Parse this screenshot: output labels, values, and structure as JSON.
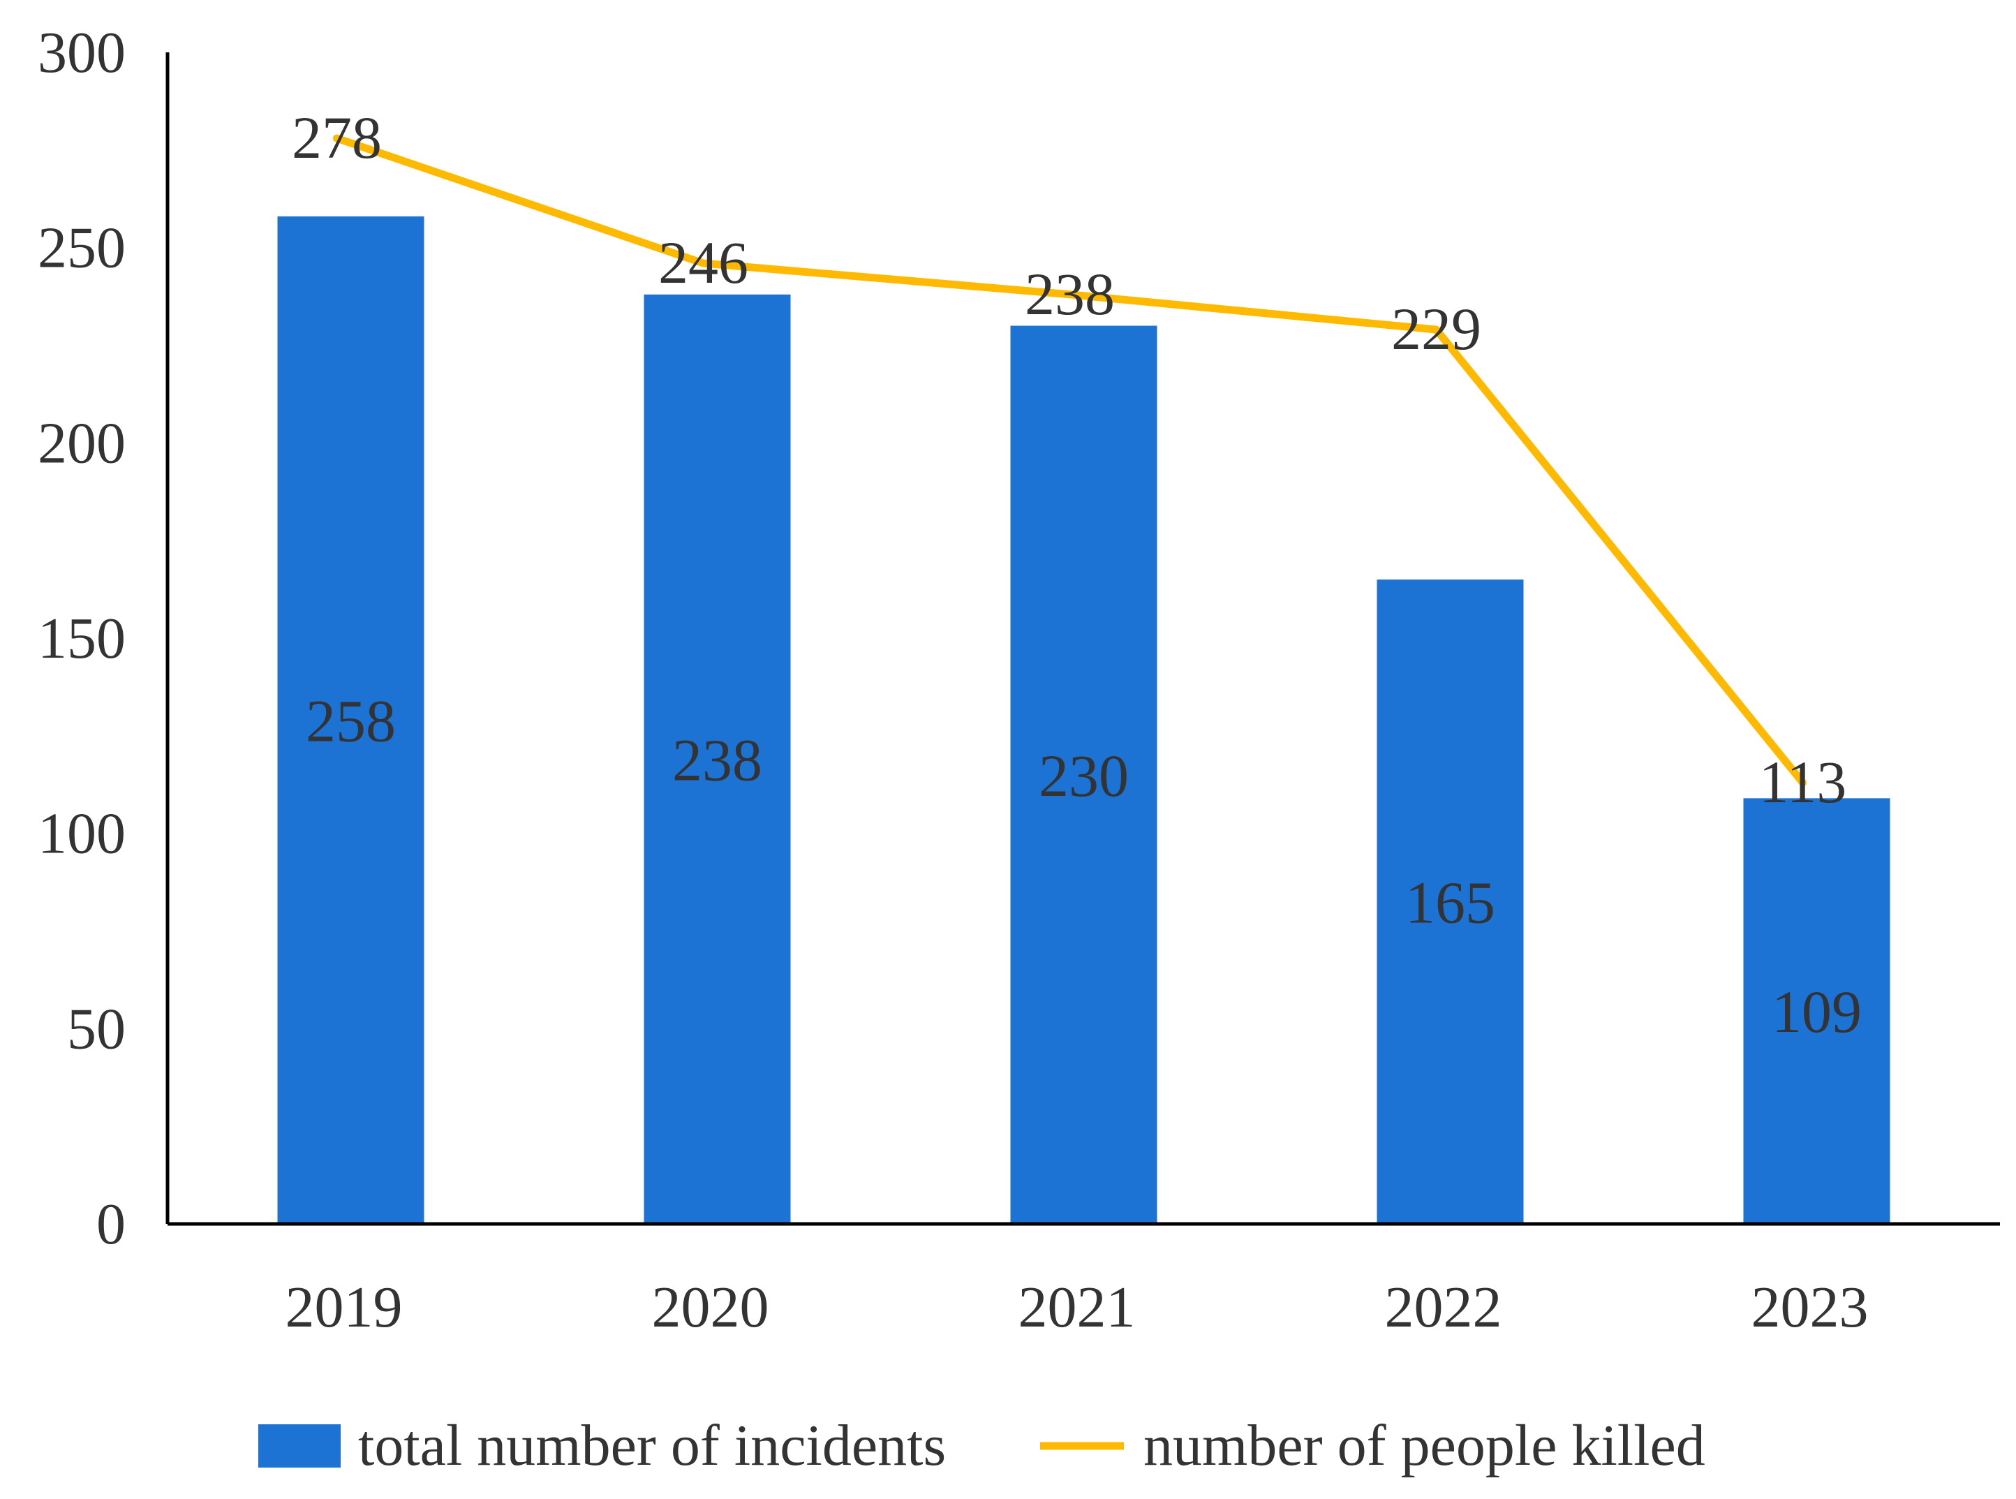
{
  "chart_data": {
    "type": "bar",
    "title": "",
    "xlabel": "",
    "ylabel": "",
    "ylim": [
      0,
      300
    ],
    "yticks": [
      0,
      50,
      100,
      150,
      200,
      250,
      300
    ],
    "categories": [
      "2019",
      "2020",
      "2021",
      "2022",
      "2023"
    ],
    "grid": false,
    "legend_position": "bottom",
    "series": [
      {
        "name": "total number of incidents",
        "type": "bar",
        "color": "#1C73D4",
        "values": [
          258,
          238,
          230,
          165,
          109
        ]
      },
      {
        "name": "number of people killed",
        "type": "line",
        "color": "#FFBA00",
        "values": [
          278,
          246,
          238,
          229,
          113
        ]
      }
    ]
  }
}
